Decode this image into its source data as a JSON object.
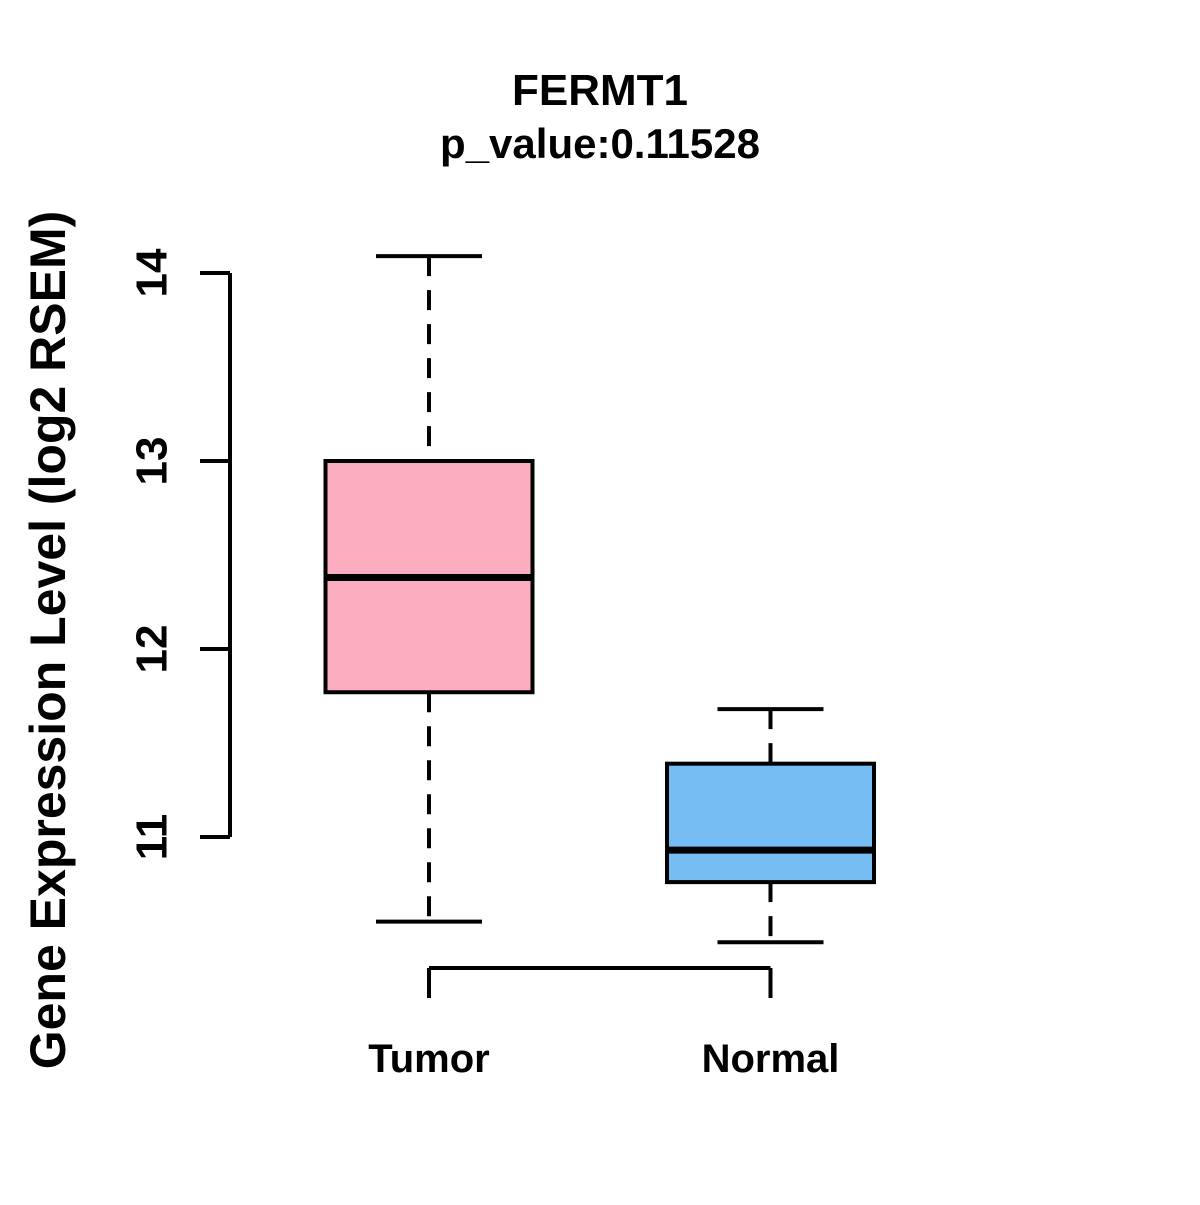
{
  "figure": {
    "background": "#ffffff"
  },
  "chart_data": {
    "type": "boxplot",
    "title": "FERMT1",
    "subtitle": "p_value:0.11528",
    "ylabel": "Gene Expression Level (log2 RSEM)",
    "xlabel": "",
    "categories": [
      "Tumor",
      "Normal"
    ],
    "yticks": [
      11,
      12,
      13,
      14
    ],
    "axis_y_range": [
      11,
      14
    ],
    "data_y_range": [
      10.44,
      14.09
    ],
    "grid": false,
    "legend": "none",
    "series": [
      {
        "name": "Tumor",
        "color": "#FCAEC0",
        "whisker_low": 10.55,
        "q1": 11.77,
        "median": 12.38,
        "q3": 13.0,
        "whisker_high": 14.09
      },
      {
        "name": "Normal",
        "color": "#76BDF3",
        "whisker_low": 10.44,
        "q1": 10.76,
        "median": 10.93,
        "q3": 11.39,
        "whisker_high": 11.68
      }
    ],
    "style": {
      "box_border_color": "#000000",
      "median_color": "#000000",
      "axis_color": "#000000",
      "whisker_style": "dashed"
    }
  }
}
